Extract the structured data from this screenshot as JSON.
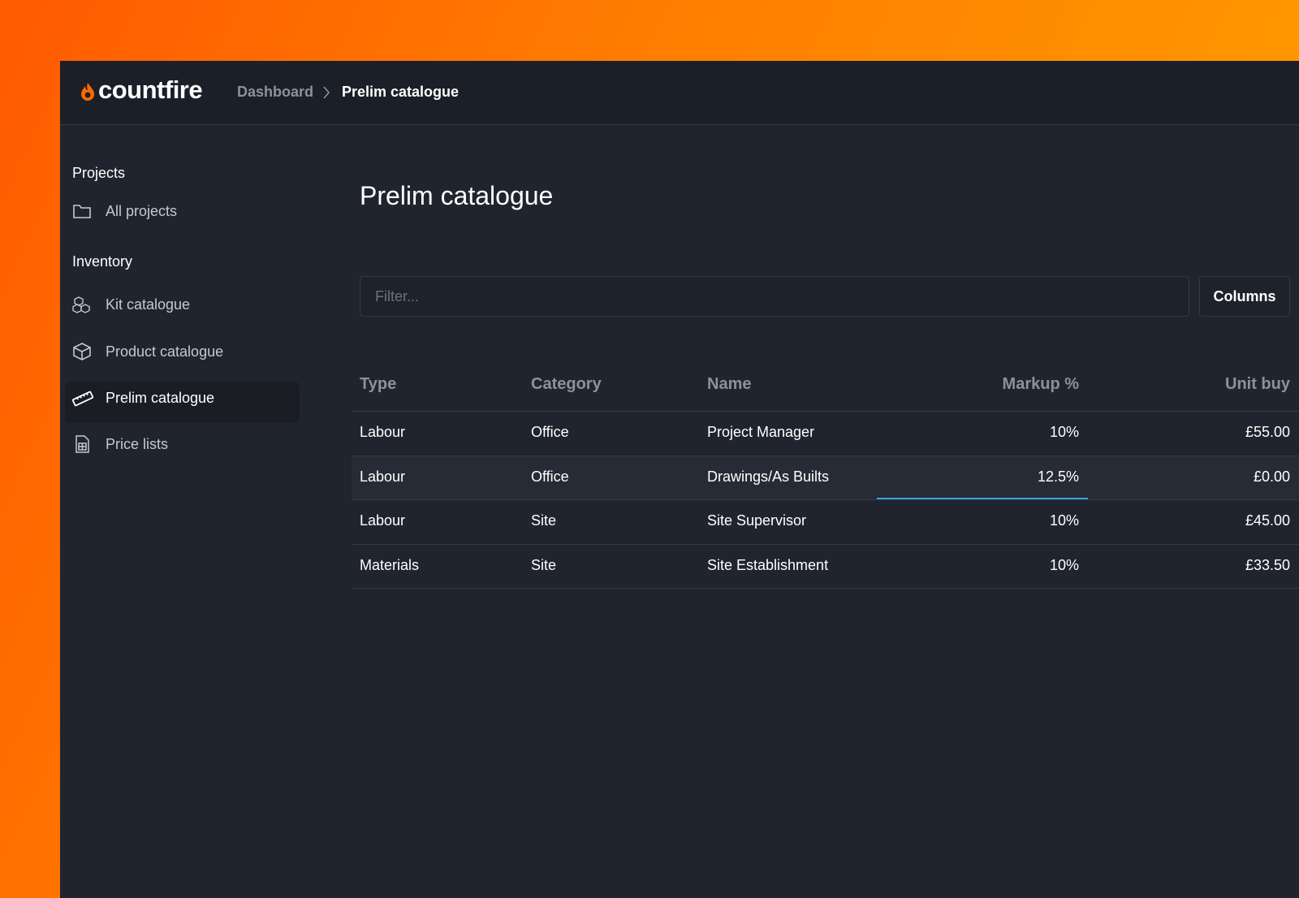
{
  "header": {
    "logo": "countfire",
    "breadcrumb": [
      "Dashboard",
      "Prelim catalogue"
    ]
  },
  "sidebar": {
    "sections": [
      {
        "title": "Projects",
        "items": [
          "All projects"
        ]
      },
      {
        "title": "Inventory",
        "items": [
          "Kit catalogue",
          "Product catalogue",
          "Prelim catalogue",
          "Price lists"
        ]
      }
    ]
  },
  "main": {
    "title": "Prelim catalogue",
    "filter_placeholder": "Filter...",
    "columns_button": "Columns"
  },
  "table": {
    "columns": [
      "Type",
      "Category",
      "Name",
      "Markup %",
      "Unit buy"
    ],
    "rows": [
      [
        "Labour",
        "Office",
        "Project Manager",
        "10%",
        "£55.00"
      ],
      [
        "Labour",
        "Office",
        "Drawings/As Builts",
        "12.5%",
        "£0.00"
      ],
      [
        "Labour",
        "Site",
        "Site Supervisor",
        "10%",
        "£45.00"
      ],
      [
        "Materials",
        "Site",
        "Site Establishment",
        "10%",
        "£33.50"
      ]
    ]
  }
}
